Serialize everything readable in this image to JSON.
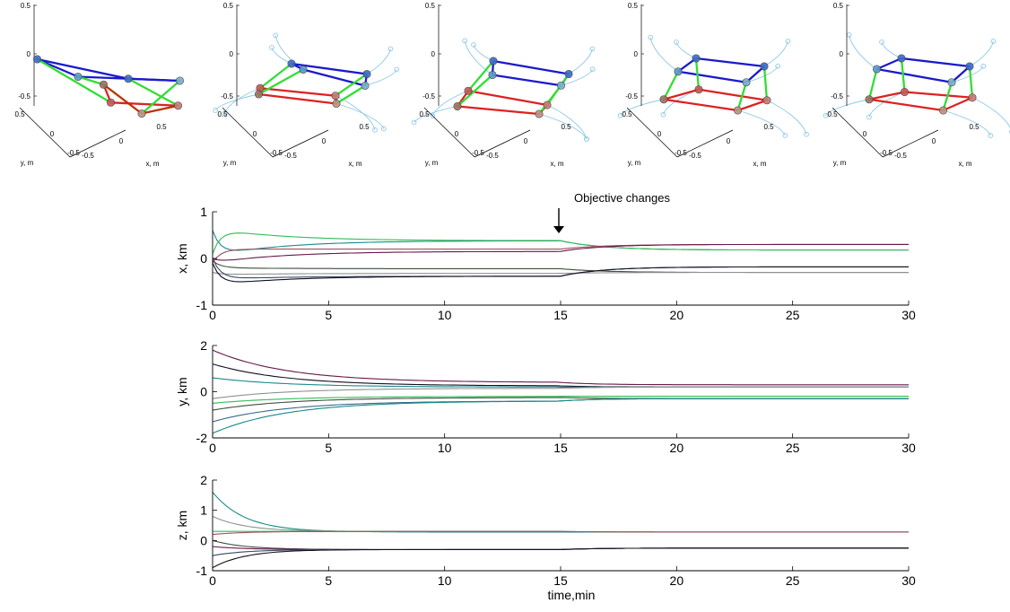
{
  "chart_data": [
    {
      "type": "scatter",
      "panel": "3d-snapshot",
      "snapshot": 1,
      "x_ticks": [
        "-0.5",
        "0",
        "0.5"
      ],
      "y_ticks": [
        "-0.5",
        "0",
        "0.5"
      ],
      "z_ticks": [
        "-0.5",
        "0",
        "0.5"
      ],
      "xlabel": "x, m",
      "ylabel": "y, m",
      "edge_colors": {
        "red": "#dd2222",
        "green": "#33dd33",
        "blue": "#1a1acc",
        "darkred": "#bb3300",
        "trail": "#8fc8e8"
      },
      "nodes": [
        [
          -0.5,
          0.5,
          0.5
        ],
        [
          0.5,
          0.5,
          0.5
        ],
        [
          -0.5,
          -0.5,
          0.5
        ],
        [
          0.5,
          -0.5,
          0.5
        ],
        [
          -0.5,
          0.5,
          -0.5
        ],
        [
          0.5,
          0.5,
          -0.5
        ],
        [
          -0.5,
          -0.5,
          -0.5
        ],
        [
          0.5,
          -0.5,
          -0.5
        ]
      ]
    },
    {
      "type": "scatter",
      "panel": "3d-snapshot",
      "snapshot": 2,
      "x_ticks": [
        "-0.5",
        "0",
        "0.5"
      ],
      "y_ticks": [
        "-0.5",
        "0",
        "0.5"
      ],
      "z_ticks": [
        "-0.5",
        "0",
        "0.5"
      ],
      "xlabel": "x, m",
      "ylabel": "y, m"
    },
    {
      "type": "scatter",
      "panel": "3d-snapshot",
      "snapshot": 3,
      "x_ticks": [
        "-0.5",
        "0",
        "0.5"
      ],
      "y_ticks": [
        "-0.5",
        "0",
        "0.5"
      ],
      "z_ticks": [
        "-0.5",
        "0",
        "0.5"
      ],
      "xlabel": "x, m",
      "ylabel": "y, m"
    },
    {
      "type": "scatter",
      "panel": "3d-snapshot",
      "snapshot": 4,
      "x_ticks": [
        "-0.5",
        "0",
        "0.5"
      ],
      "y_ticks": [
        "-0.5",
        "0",
        "0.5"
      ],
      "z_ticks": [
        "-0.5",
        "0",
        "0.5"
      ],
      "xlabel": "x, m",
      "ylabel": "y, m"
    },
    {
      "type": "scatter",
      "panel": "3d-snapshot",
      "snapshot": 5,
      "x_ticks": [
        "-0.5",
        "0",
        "0.5"
      ],
      "y_ticks": [
        "-0.5",
        "0",
        "0.5"
      ],
      "z_ticks": [
        "-0.5",
        "0",
        "0.5"
      ],
      "xlabel": "x, m",
      "ylabel": "y, m"
    },
    {
      "type": "line",
      "panel": "x",
      "ylabel": "x, km",
      "xlabel": "",
      "xlim": [
        0,
        30
      ],
      "ylim": [
        -1,
        1
      ],
      "x_ticks": [
        0,
        5,
        10,
        15,
        20,
        25,
        30
      ],
      "y_ticks": [
        -1,
        0,
        1
      ],
      "annotation": {
        "text": "Objective changes",
        "x": 15
      },
      "series": [
        {
          "color": "#1a8a8a",
          "start": 0.6,
          "peak": 0.05,
          "mid": 0.38,
          "end": 0.18
        },
        {
          "color": "#33bb55",
          "start": 0.1,
          "peak": 0.65,
          "mid": 0.38,
          "end": 0.18
        },
        {
          "color": "#a05060",
          "start": -0.1,
          "peak": 0.2,
          "mid": 0.2,
          "end": 0.3
        },
        {
          "color": "#6a1a4a",
          "start": 0.0,
          "peak": -0.1,
          "mid": 0.15,
          "end": 0.3
        },
        {
          "color": "#404f40",
          "start": -0.05,
          "peak": -0.2,
          "mid": -0.22,
          "end": -0.3
        },
        {
          "color": "#909090",
          "start": -0.3,
          "peak": -0.35,
          "mid": -0.32,
          "end": -0.3
        },
        {
          "color": "#3a4a6a",
          "start": 0.0,
          "peak": -0.45,
          "mid": -0.38,
          "end": -0.18
        },
        {
          "color": "#111122",
          "start": -0.1,
          "peak": -0.58,
          "mid": -0.38,
          "end": -0.18
        }
      ]
    },
    {
      "type": "line",
      "panel": "y",
      "ylabel": "y, km",
      "xlabel": "",
      "xlim": [
        0,
        30
      ],
      "ylim": [
        -2,
        2
      ],
      "x_ticks": [
        0,
        5,
        10,
        15,
        20,
        25,
        30
      ],
      "y_ticks": [
        -2,
        0,
        2
      ],
      "series": [
        {
          "color": "#6a1a4a",
          "start": 1.8,
          "mid": 0.4,
          "end": 0.3
        },
        {
          "color": "#111122",
          "start": 1.2,
          "mid": 0.25,
          "end": 0.2
        },
        {
          "color": "#1a8a8a",
          "start": 0.6,
          "mid": 0.2,
          "end": 0.2
        },
        {
          "color": "#909090",
          "start": -0.3,
          "mid": 0.15,
          "end": 0.2
        },
        {
          "color": "#33bb55",
          "start": -0.5,
          "mid": -0.2,
          "end": -0.2
        },
        {
          "color": "#404f40",
          "start": -0.8,
          "mid": -0.25,
          "end": -0.3
        },
        {
          "color": "#3a6a8a",
          "start": -1.3,
          "mid": -0.4,
          "end": -0.3
        },
        {
          "color": "#1a8a8a",
          "start": -1.8,
          "mid": -0.4,
          "end": -0.3
        }
      ]
    },
    {
      "type": "line",
      "panel": "z",
      "ylabel": "z, km",
      "xlabel": "time,min",
      "xlim": [
        0,
        30
      ],
      "ylim": [
        -1,
        2
      ],
      "x_ticks": [
        0,
        5,
        10,
        15,
        20,
        25,
        30
      ],
      "y_ticks": [
        -1,
        0,
        1,
        2
      ],
      "series": [
        {
          "color": "#1a8a8a",
          "start": 1.6,
          "mid": 0.28,
          "end": 0.28
        },
        {
          "color": "#909090",
          "start": 0.8,
          "mid": 0.3,
          "end": 0.28
        },
        {
          "color": "#33bb55",
          "start": 0.3,
          "mid": 0.3,
          "end": 0.28
        },
        {
          "color": "#a05060",
          "start": 0.2,
          "mid": 0.3,
          "end": 0.28
        },
        {
          "color": "#404f40",
          "start": 0.0,
          "mid": -0.3,
          "end": -0.25
        },
        {
          "color": "#6a1a4a",
          "start": -0.2,
          "mid": -0.3,
          "end": -0.25
        },
        {
          "color": "#3a4a6a",
          "start": -0.5,
          "mid": -0.3,
          "end": -0.25
        },
        {
          "color": "#111122",
          "start": -0.9,
          "mid": -0.3,
          "end": -0.25
        }
      ]
    }
  ]
}
